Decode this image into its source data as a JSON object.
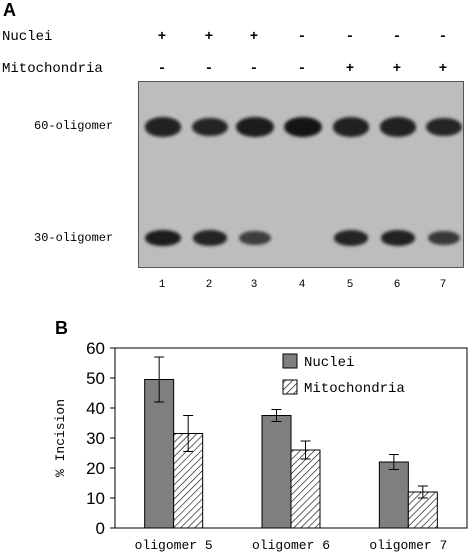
{
  "panel_a": {
    "letter": "A",
    "rows": [
      {
        "label": "Nuclei",
        "signs": [
          "+",
          "+",
          "+",
          "-",
          "-",
          "-",
          "-"
        ]
      },
      {
        "label": "Mitochondria",
        "signs": [
          "-",
          "-",
          "-",
          "-",
          "+",
          "+",
          "+"
        ]
      }
    ],
    "band_labels": {
      "upper": "60-oligomer",
      "lower": "30-oligomer"
    },
    "lanes": [
      "1",
      "2",
      "3",
      "4",
      "5",
      "6",
      "7"
    ],
    "bands": {
      "upper_intensity": [
        0.85,
        0.82,
        0.9,
        1.0,
        0.85,
        0.85,
        0.82
      ],
      "lower_intensity": [
        0.9,
        0.82,
        0.55,
        0.0,
        0.82,
        0.85,
        0.6
      ]
    }
  },
  "panel_b": {
    "letter": "B",
    "chart_data": {
      "type": "bar",
      "categories": [
        "oligomer 5",
        "oligomer 6",
        "oligomer 7"
      ],
      "series": [
        {
          "name": "Nuclei",
          "values": [
            49.5,
            37.5,
            22
          ],
          "errors": [
            7.5,
            2.0,
            2.5
          ],
          "fill": "#7f7f7f"
        },
        {
          "name": "Mitochondria",
          "values": [
            31.5,
            26,
            12
          ],
          "errors": [
            6.0,
            3.0,
            2.0
          ],
          "fill": "hatch"
        }
      ],
      "ylabel": "% Incision",
      "xlabel": "",
      "ylim": [
        0,
        60
      ],
      "yticks": [
        "0",
        "10",
        "20",
        "30",
        "40",
        "50",
        "60"
      ],
      "grid": false,
      "legend_position": "top-right"
    }
  }
}
